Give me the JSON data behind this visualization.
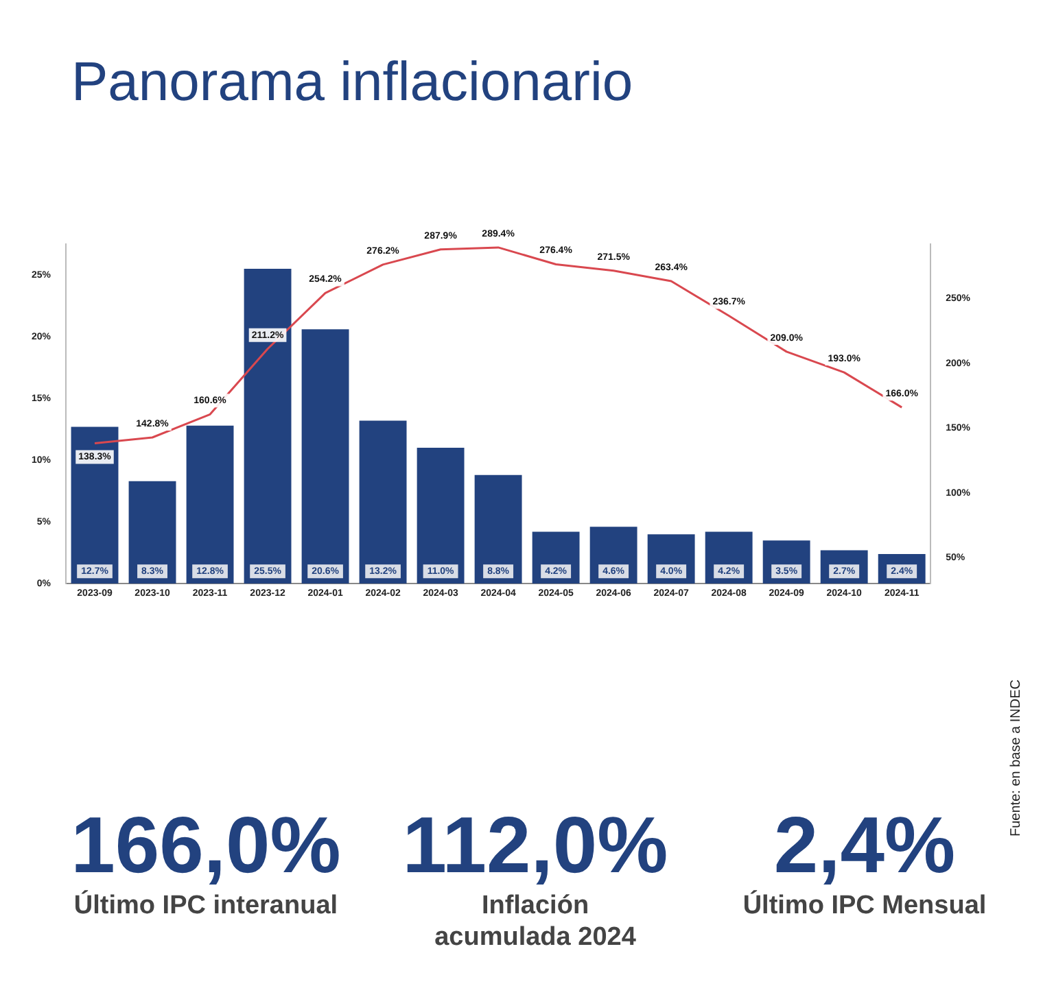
{
  "chart_data": [
    {
      "type": "bar",
      "title": "Panorama inflacionario",
      "categories": [
        "2023-09",
        "2023-10",
        "2023-11",
        "2023-12",
        "2024-01",
        "2024-02",
        "2024-03",
        "2024-04",
        "2024-05",
        "2024-06",
        "2024-07",
        "2024-08",
        "2024-09",
        "2024-10",
        "2024-11"
      ],
      "series": [
        {
          "type": "bar",
          "color": "#22427f",
          "values": [
            12.7,
            8.3,
            12.8,
            25.5,
            20.6,
            13.2,
            11.0,
            8.8,
            4.2,
            4.6,
            4.0,
            4.2,
            3.5,
            2.7,
            2.4
          ],
          "value_labels": [
            "12.7%",
            "8.3%",
            "12.8%",
            "25.5%",
            "20.6%",
            "13.2%",
            "11.0%",
            "8.8%",
            "4.2%",
            "4.6%",
            "4.0%",
            "4.2%",
            "3.5%",
            "2.7%",
            "2.4%"
          ]
        },
        {
          "type": "line",
          "axis": "y2",
          "color": "#d9484f",
          "values": [
            138.3,
            142.8,
            160.6,
            211.2,
            254.2,
            276.2,
            287.9,
            289.4,
            276.4,
            271.5,
            263.4,
            236.7,
            209.0,
            193.0,
            166.0
          ],
          "value_labels": [
            "138.3%",
            "142.8%",
            "160.6%",
            "211.2%",
            "254.2%",
            "276.2%",
            "287.9%",
            "289.4%",
            "276.4%",
            "271.5%",
            "263.4%",
            "236.7%",
            "209.0%",
            "193.0%",
            "166.0%"
          ]
        }
      ],
      "ylim": [
        0,
        27.5
      ],
      "yticks": [
        {
          "value": 0,
          "label": "0%"
        },
        {
          "value": 5,
          "label": "5%"
        },
        {
          "value": 10,
          "label": "10%"
        },
        {
          "value": 15,
          "label": "15%"
        },
        {
          "value": 20,
          "label": "20%"
        },
        {
          "value": 25,
          "label": "25%"
        }
      ],
      "y2lim": [
        30,
        292
      ],
      "y2ticks": [
        {
          "value": 50,
          "label": "50%"
        },
        {
          "value": 100,
          "label": "100%"
        },
        {
          "value": 150,
          "label": "150%"
        },
        {
          "value": 200,
          "label": "200%"
        },
        {
          "value": 250,
          "label": "250%"
        }
      ],
      "grid": false,
      "legend": false,
      "marker": "none",
      "annotations": [
        "Fuente: en base a INDEC"
      ]
    },
    {
      "type": "other",
      "annotations": [
        "166,0%",
        "Último IPC interanual",
        "112,0%",
        "Inflación acumulada 2024",
        "2,4%",
        "Último IPC Mensual"
      ]
    }
  ]
}
